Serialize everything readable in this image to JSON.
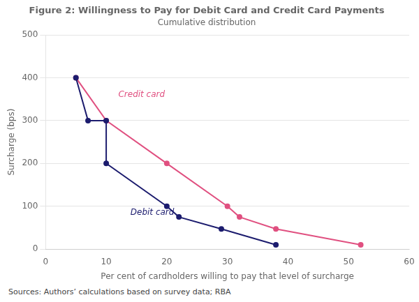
{
  "chart_data": {
    "type": "line",
    "title": "Figure 2: Willingness to Pay for Debit Card and Credit Card Payments",
    "subtitle": "Cumulative distribution",
    "x_label": "Per cent of cardholders willing to pay that level of surcharge",
    "y_label": "Surcharge (bps)",
    "source": "Sources:   Authors’ calculations based on survey data; RBA",
    "xlim": [
      0,
      60
    ],
    "xticks": [
      0,
      10,
      20,
      30,
      40,
      50,
      60
    ],
    "ylim": [
      0,
      500
    ],
    "yticks": [
      0,
      100,
      200,
      300,
      400,
      500
    ],
    "grid": "y",
    "marker": "circle",
    "series": [
      {
        "color": "#1c1c6e",
        "x": [
          5,
          7,
          10,
          10,
          20,
          22,
          29,
          38
        ],
        "values": [
          400,
          300,
          300,
          200,
          100,
          75,
          47,
          10
        ]
      },
      {
        "color": "#e05080",
        "x": [
          5,
          10,
          20,
          30,
          32,
          38,
          52
        ],
        "values": [
          400,
          300,
          200,
          100,
          75,
          47,
          10
        ]
      }
    ],
    "annotations": [
      {
        "text": "Credit card",
        "x": 12,
        "y": 350,
        "color": "#e05080"
      },
      {
        "text": "Debit card",
        "x": 14,
        "y": 75,
        "color": "#1c1c6e"
      }
    ]
  }
}
